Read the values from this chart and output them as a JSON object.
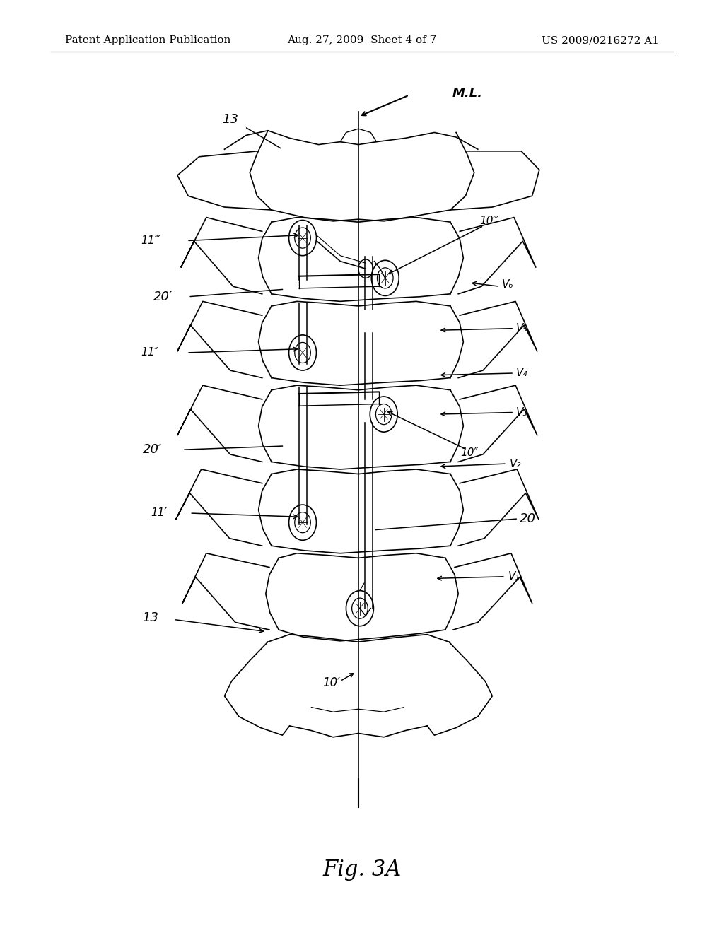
{
  "background_color": "#ffffff",
  "header_left": "Patent Application Publication",
  "header_center": "Aug. 27, 2009  Sheet 4 of 7",
  "header_right": "US 2009/0216272 A1",
  "figure_label": "Fig. 3A",
  "header_fontsize": 11,
  "figure_label_fontsize": 22
}
